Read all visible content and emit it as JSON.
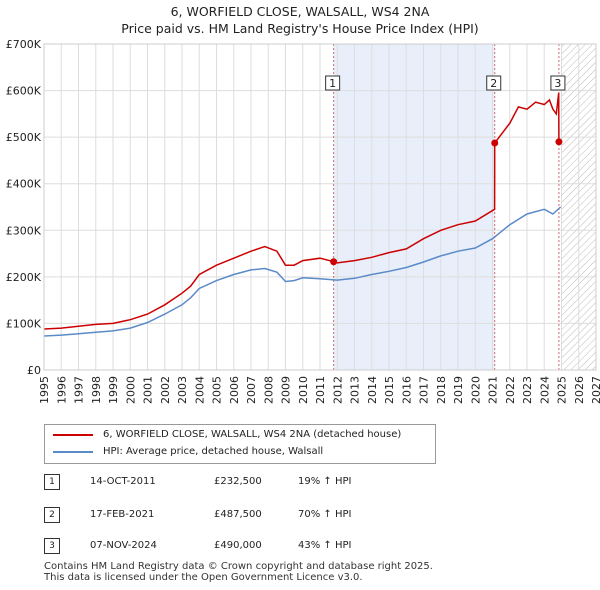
{
  "title_line1": "6, WORFIELD CLOSE, WALSALL, WS4 2NA",
  "title_line2": "Price paid vs. HM Land Registry's House Price Index (HPI)",
  "legend": {
    "property_label": "6, WORFIELD CLOSE, WALSALL, WS4 2NA (detached house)",
    "hpi_label": "HPI: Average price, detached house, Walsall"
  },
  "colors": {
    "property": "#cc0000",
    "hpi": "#5b8ac8",
    "shade": "#e8eefa",
    "marker_line": "#d46c6c"
  },
  "transactions": [
    {
      "num": "1",
      "date": "14-OCT-2011",
      "price": "£232,500",
      "hpi_change": "19% ↑ HPI"
    },
    {
      "num": "2",
      "date": "17-FEB-2021",
      "price": "£487,500",
      "hpi_change": "70% ↑ HPI"
    },
    {
      "num": "3",
      "date": "07-NOV-2024",
      "price": "£490,000",
      "hpi_change": "43% ↑ HPI"
    }
  ],
  "footer_line1": "Contains HM Land Registry data © Crown copyright and database right 2025.",
  "footer_line2": "This data is licensed under the Open Government Licence v3.0.",
  "chart_data": {
    "type": "line",
    "title": "6, WORFIELD CLOSE, WALSALL, WS4 2NA",
    "subtitle": "Price paid vs. HM Land Registry's House Price Index (HPI)",
    "xlabel": "",
    "ylabel": "",
    "xlim": [
      1995,
      2027
    ],
    "ylim": [
      0,
      700000
    ],
    "y_ticks": [
      0,
      100000,
      200000,
      300000,
      400000,
      500000,
      600000,
      700000
    ],
    "y_tick_labels": [
      "£0",
      "£100K",
      "£200K",
      "£300K",
      "£400K",
      "£500K",
      "£600K",
      "£700K"
    ],
    "x_ticks": [
      1995,
      1996,
      1997,
      1998,
      1999,
      2000,
      2001,
      2002,
      2003,
      2004,
      2005,
      2006,
      2007,
      2008,
      2009,
      2010,
      2011,
      2012,
      2013,
      2014,
      2015,
      2016,
      2017,
      2018,
      2019,
      2020,
      2021,
      2022,
      2023,
      2024,
      2025,
      2026,
      2027
    ],
    "grid": true,
    "sales": [
      {
        "label": "1",
        "x": 2011.79,
        "y": 232500
      },
      {
        "label": "2",
        "x": 2021.13,
        "y": 487500
      },
      {
        "label": "3",
        "x": 2024.85,
        "y": 490000
      }
    ],
    "shaded_range": [
      2011.79,
      2021.13
    ],
    "hatched_from": 2025.0,
    "series": [
      {
        "name": "6, WORFIELD CLOSE, WALSALL, WS4 2NA (detached house)",
        "x": [
          1995,
          1996,
          1997,
          1998,
          1999,
          2000,
          2001,
          2002,
          2003,
          2003.5,
          2004,
          2005,
          2006,
          2007,
          2007.8,
          2008.5,
          2009,
          2009.5,
          2010,
          2011,
          2011.79,
          2012,
          2013,
          2014,
          2015,
          2016,
          2017,
          2018,
          2019,
          2020,
          2021.12,
          2021.13,
          2022,
          2022.5,
          2023,
          2023.5,
          2024,
          2024.3,
          2024.5,
          2024.7,
          2024.84,
          2024.85,
          2024.95
        ],
        "y": [
          88000,
          90000,
          94000,
          98000,
          100000,
          108000,
          120000,
          140000,
          165000,
          180000,
          205000,
          225000,
          240000,
          255000,
          265000,
          255000,
          225000,
          225000,
          235000,
          240000,
          232500,
          230000,
          235000,
          242000,
          252000,
          260000,
          282000,
          300000,
          312000,
          320000,
          345000,
          487500,
          530000,
          565000,
          560000,
          575000,
          570000,
          580000,
          560000,
          550000,
          595000,
          490000,
          485000
        ]
      },
      {
        "name": "HPI: Average price, detached house, Walsall",
        "x": [
          1995,
          1996,
          1997,
          1998,
          1999,
          2000,
          2001,
          2002,
          2003,
          2003.5,
          2004,
          2005,
          2006,
          2007,
          2007.8,
          2008.5,
          2009,
          2009.5,
          2010,
          2011,
          2012,
          2013,
          2014,
          2015,
          2016,
          2017,
          2018,
          2019,
          2020,
          2021,
          2022,
          2023,
          2024,
          2024.5,
          2024.95
        ],
        "y": [
          73000,
          75000,
          78000,
          81000,
          84000,
          90000,
          102000,
          120000,
          140000,
          155000,
          175000,
          192000,
          205000,
          215000,
          218000,
          210000,
          190000,
          192000,
          198000,
          196000,
          193000,
          197000,
          205000,
          212000,
          220000,
          232000,
          245000,
          255000,
          262000,
          282000,
          312000,
          335000,
          345000,
          335000,
          350000
        ]
      }
    ]
  }
}
